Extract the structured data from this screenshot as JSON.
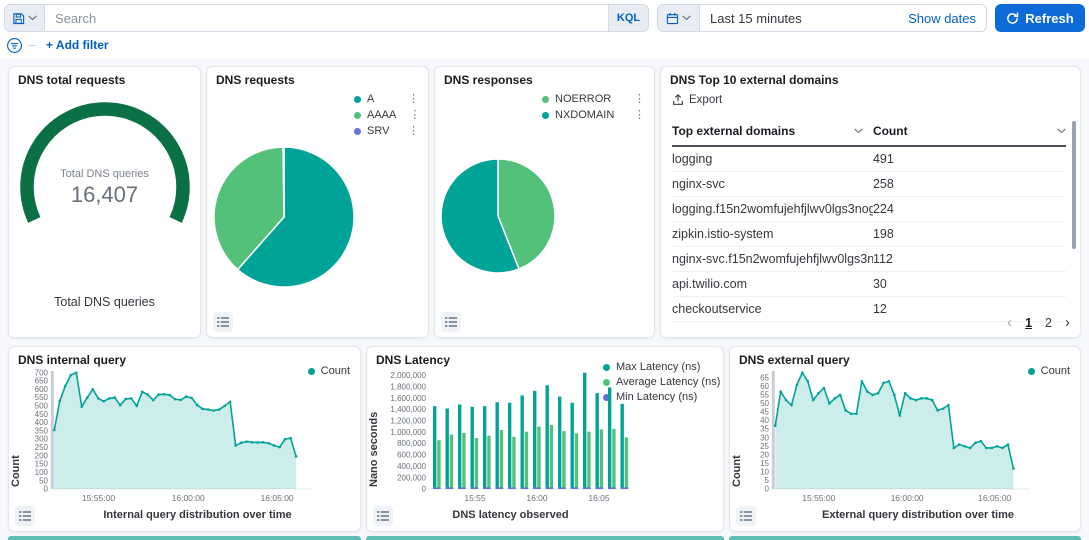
{
  "topbar": {
    "search_placeholder": "Search",
    "kql_label": "KQL",
    "time_range": "Last 15 minutes",
    "show_dates": "Show dates",
    "refresh": "Refresh",
    "add_filter": "+ Add filter"
  },
  "colors": {
    "teal": "#00a398",
    "green": "#54c17a",
    "purple_blue": "#6771dc",
    "gauge_green": "#0b7043",
    "link_blue": "#0061c2",
    "button_blue": "#0d6bd8",
    "area_fill": "rgba(0,163,152,0.20)"
  },
  "panels": {
    "gauge": {
      "title": "DNS total requests",
      "center_label": "Total DNS queries",
      "value": "16,407",
      "bottom_label": "Total DNS queries"
    },
    "requests": {
      "title": "DNS requests"
    },
    "responses": {
      "title": "DNS responses"
    },
    "domains": {
      "title": "DNS Top 10 external domains",
      "export_label": "Export",
      "col_domain": "Top external domains",
      "col_count": "Count",
      "rows": [
        [
          "logging",
          "491"
        ],
        [
          "nginx-svc",
          "258"
        ],
        [
          "logging.f15n2womfujehfjlwv0lgs3nog....",
          "224"
        ],
        [
          "zipkin.istio-system",
          "198"
        ],
        [
          "nginx-svc.f15n2womfujehfjlwv0lgs3no...",
          "112"
        ],
        [
          "api.twilio.com",
          "30"
        ],
        [
          "checkoutservice",
          "12"
        ]
      ],
      "pages": [
        "1",
        "2"
      ],
      "active_page": "1"
    },
    "internal": {
      "title": "DNS internal query"
    },
    "latency": {
      "title": "DNS Latency"
    },
    "external": {
      "title": "DNS external query"
    }
  },
  "chart_data": [
    {
      "type": "gauge",
      "title": "DNS total requests",
      "label": "Total DNS queries",
      "value": 16407,
      "display_value": "16,407",
      "arc_color": "#0b7043"
    },
    {
      "type": "pie",
      "title": "DNS requests",
      "slices": [
        {
          "label": "A",
          "value": 61.5,
          "color": "#00a398"
        },
        {
          "label": "AAAA",
          "value": 38.3,
          "color": "#54c17a"
        },
        {
          "label": "SRV",
          "value": 0.2,
          "color": "#6771dc"
        }
      ],
      "legend": [
        {
          "label": "A",
          "color": "#00a398",
          "menu": true
        },
        {
          "label": "AAAA",
          "color": "#54c17a",
          "menu": true
        },
        {
          "label": "SRV",
          "color": "#6771dc",
          "menu": true
        }
      ],
      "legend_position": "top-right"
    },
    {
      "type": "pie",
      "title": "DNS responses",
      "slices": [
        {
          "label": "NOERROR",
          "value": 44,
          "color": "#54c17a"
        },
        {
          "label": "NXDOMAIN",
          "value": 56,
          "color": "#00a398"
        }
      ],
      "legend": [
        {
          "label": "NOERROR",
          "color": "#54c17a",
          "menu": true
        },
        {
          "label": "NXDOMAIN",
          "color": "#00a398",
          "menu": true
        }
      ],
      "legend_position": "top-right"
    },
    {
      "type": "area",
      "title": "DNS internal query",
      "ylabel": "Count",
      "xlabel": "Internal query distribution over time",
      "ylim": [
        0,
        700
      ],
      "ystep": 50,
      "yscale": 710,
      "line_color": "#00a398",
      "xticks": [
        {
          "label": "15:55:00",
          "f": 0.175
        },
        {
          "label": "16:00:00",
          "f": 0.52
        },
        {
          "label": "16:05:00",
          "f": 0.862
        }
      ],
      "values": [
        355,
        530,
        620,
        685,
        700,
        495,
        550,
        600,
        545,
        528,
        545,
        550,
        505,
        542,
        545,
        500,
        585,
        568,
        535,
        568,
        570,
        565,
        540,
        536,
        556,
        548,
        505,
        482,
        478,
        472,
        478,
        500,
        525,
        262,
        278,
        285,
        281,
        280,
        281,
        276,
        262,
        252,
        300,
        306,
        196
      ],
      "legend": [
        {
          "label": "Count",
          "color": "#00a398"
        }
      ],
      "legend_position": "top-right",
      "grid": false
    },
    {
      "type": "bar",
      "title": "DNS Latency",
      "ylabel": "Nano seconds",
      "xlabel": "DNS latency observed",
      "ylim": [
        0,
        2000000
      ],
      "ystep": 200000,
      "yscale": 2080000,
      "xticks": [
        {
          "label": "15:55",
          "f": 0.22
        },
        {
          "label": "16:00",
          "f": 0.53
        },
        {
          "label": "16:05",
          "f": 0.84
        }
      ],
      "series": [
        {
          "name": "Max Latency (ns)",
          "color": "#00a398",
          "values": [
            1460000,
            1420000,
            1490000,
            1450000,
            1460000,
            1530000,
            1520000,
            1650000,
            1730000,
            1830000,
            1630000,
            1520000,
            2050000,
            1690000,
            1790000,
            1500000
          ]
        },
        {
          "name": "Average Latency (ns)",
          "color": "#54c17a",
          "values": [
            860000,
            960000,
            990000,
            900000,
            940000,
            1040000,
            920000,
            1010000,
            1100000,
            1130000,
            1020000,
            980000,
            1010000,
            1050000,
            1060000,
            910000
          ]
        },
        {
          "name": "Min Latency (ns)",
          "color": "#6771dc",
          "values": [
            15000,
            15000,
            15000,
            15000,
            15000,
            15000,
            15000,
            15000,
            15000,
            15000,
            15000,
            15000,
            15000,
            15000,
            15000,
            15000
          ]
        }
      ],
      "legend": [
        {
          "label": "Max Latency (ns)",
          "color": "#00a398"
        },
        {
          "label": "Average Latency (ns)",
          "color": "#54c17a"
        },
        {
          "label": "Min Latency (ns)",
          "color": "#6771dc"
        }
      ],
      "legend_position": "right",
      "grid": false
    },
    {
      "type": "area",
      "title": "DNS external query",
      "ylabel": "Count",
      "xlabel": "External query distribution over time",
      "ylim": [
        0,
        65
      ],
      "ystep": 5,
      "yscale": 69,
      "line_color": "#00a398",
      "xticks": [
        {
          "label": "15:55:00",
          "f": 0.175
        },
        {
          "label": "16:00:00",
          "f": 0.52
        },
        {
          "label": "16:05:00",
          "f": 0.862
        }
      ],
      "values": [
        37,
        57,
        52,
        49,
        61,
        68,
        63,
        52,
        56,
        59,
        50,
        53,
        55,
        46,
        44,
        44,
        63,
        57,
        55,
        56,
        62,
        63,
        55,
        43,
        56,
        53,
        52,
        53,
        53,
        52,
        46,
        47,
        49,
        24,
        26,
        25,
        24,
        27,
        28,
        24,
        24,
        25,
        24,
        26,
        12
      ],
      "legend": [
        {
          "label": "Count",
          "color": "#00a398"
        }
      ],
      "legend_position": "top-right",
      "grid": false
    }
  ]
}
